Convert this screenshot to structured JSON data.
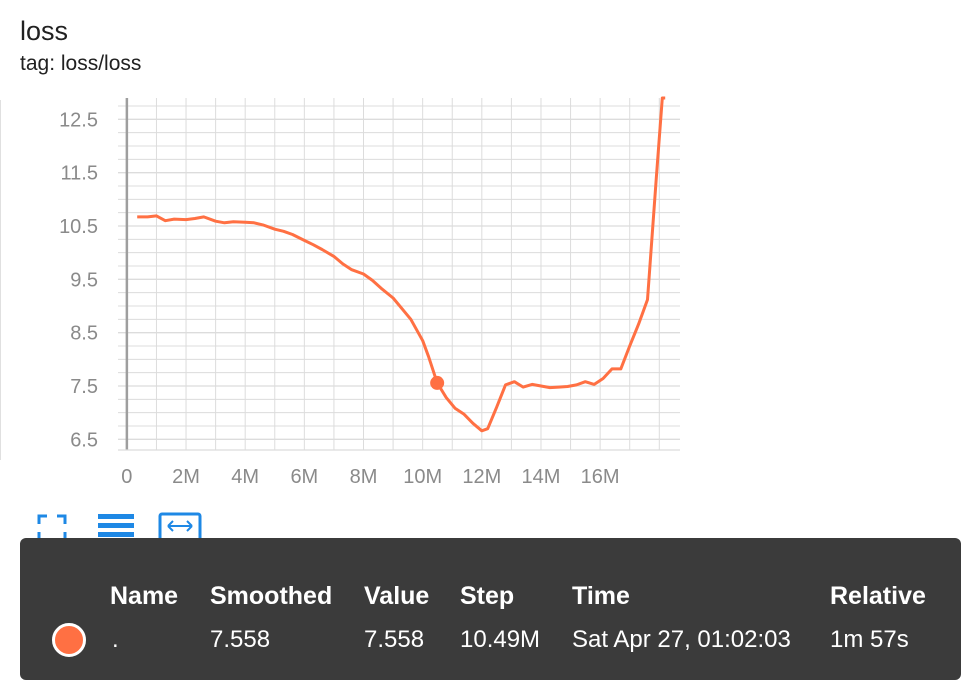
{
  "card": {
    "title": "loss",
    "tag": "tag: loss/loss"
  },
  "colors": {
    "series": "#ff7043",
    "grid": "#dcdcdc",
    "axis": "#9e9e9e",
    "tooltip_bg": "#3b3b3b"
  },
  "toolbar": {
    "icons": [
      "fit-domain-icon",
      "data-table-icon",
      "expand-icon"
    ]
  },
  "tooltip": {
    "headers": [
      "Name",
      "Smoothed",
      "Value",
      "Step",
      "Time",
      "Relative"
    ],
    "row": {
      "name": ".",
      "smoothed": "7.558",
      "value": "7.558",
      "step": "10.49M",
      "time": "Sat Apr 27, 01:02:03",
      "relative": "1m 57s"
    }
  },
  "chart_data": {
    "type": "line",
    "title": "loss",
    "xlabel": "",
    "ylabel": "",
    "xlim": [
      -0.3,
      18.7
    ],
    "ylim": [
      6.3,
      12.9
    ],
    "x_ticks": [
      0,
      2,
      4,
      6,
      8,
      10,
      12,
      14,
      16
    ],
    "x_tick_labels": [
      "0",
      "2M",
      "4M",
      "6M",
      "8M",
      "10M",
      "12M",
      "14M",
      "16M"
    ],
    "y_ticks": [
      6.5,
      7.5,
      8.5,
      9.5,
      10.5,
      11.5,
      12.5
    ],
    "y_tick_labels": [
      "6.5",
      "7.5",
      "8.5",
      "9.5",
      "10.5",
      "11.5",
      "12.5"
    ],
    "grid": true,
    "series": [
      {
        "x": [
          0.35,
          0.7,
          1.0,
          1.3,
          1.6,
          2.0,
          2.3,
          2.6,
          3.0,
          3.3,
          3.6,
          4.0,
          4.3,
          4.6,
          5.0,
          5.3,
          5.6,
          6.0,
          6.3,
          6.6,
          7.0,
          7.3,
          7.6,
          8.0,
          8.3,
          8.6,
          9.0,
          9.3,
          9.6,
          10.0,
          10.2,
          10.49,
          10.8,
          11.1,
          11.4,
          11.7,
          12.0,
          12.2,
          12.5,
          12.8,
          13.1,
          13.4,
          13.7,
          14.0,
          14.3,
          14.6,
          14.9,
          15.2,
          15.5,
          15.8,
          16.1,
          16.4,
          16.7,
          17.0,
          17.3,
          17.6,
          17.9,
          18.1,
          18.15,
          18.2
        ],
        "values": [
          10.67,
          10.67,
          10.69,
          10.6,
          10.63,
          10.62,
          10.64,
          10.67,
          10.59,
          10.56,
          10.58,
          10.57,
          10.56,
          10.52,
          10.44,
          10.4,
          10.34,
          10.23,
          10.15,
          10.06,
          9.93,
          9.79,
          9.68,
          9.6,
          9.48,
          9.33,
          9.15,
          8.95,
          8.75,
          8.35,
          8.05,
          7.558,
          7.28,
          7.08,
          6.97,
          6.8,
          6.66,
          6.7,
          7.1,
          7.52,
          7.58,
          7.48,
          7.53,
          7.5,
          7.47,
          7.48,
          7.49,
          7.52,
          7.58,
          7.53,
          7.64,
          7.82,
          7.82,
          8.25,
          8.66,
          9.12,
          11.4,
          12.9,
          12.9,
          12.9
        ],
        "highlight": {
          "x": 10.49,
          "y": 7.558
        }
      }
    ]
  }
}
